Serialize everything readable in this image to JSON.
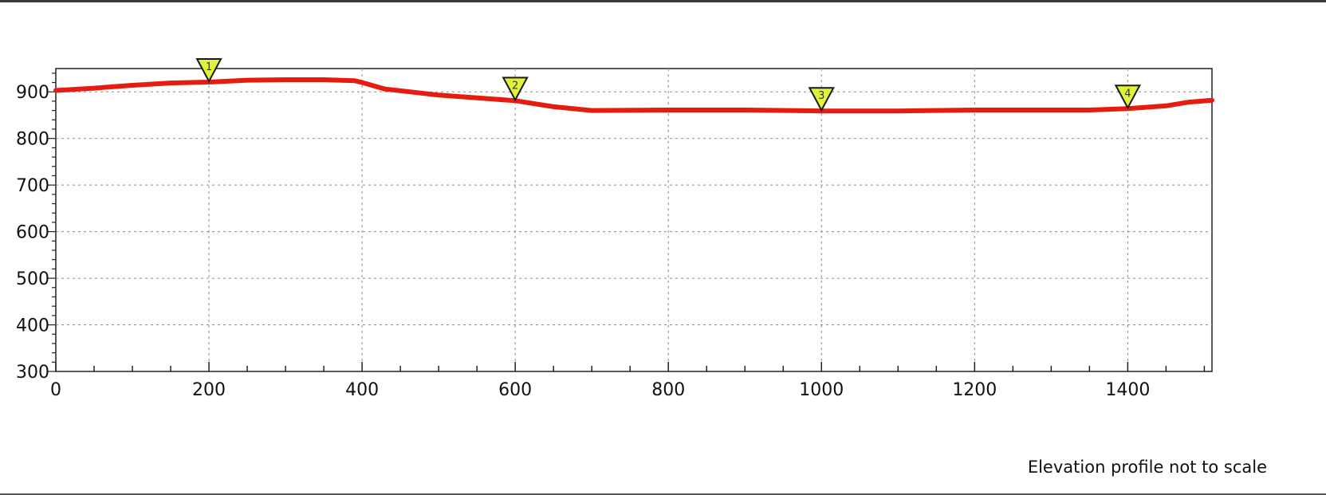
{
  "chart_data": {
    "type": "line",
    "title": "",
    "xlabel": "",
    "ylabel": "",
    "xlim": [
      0,
      1510
    ],
    "ylim": [
      300,
      950
    ],
    "x_ticks": [
      0,
      200,
      400,
      600,
      800,
      1000,
      1200,
      1400
    ],
    "x_tick_labels": [
      "0",
      "200",
      "400",
      "600",
      "800",
      "1000",
      "1200",
      "1400"
    ],
    "y_ticks": [
      300,
      400,
      500,
      600,
      700,
      800,
      900
    ],
    "y_tick_labels": [
      "300",
      "400",
      "500",
      "600",
      "700",
      "800",
      "900"
    ],
    "grid": true,
    "grid_style": "dotted",
    "line_color": "#e61b12",
    "marker_color": "#e0f23a",
    "series": [
      {
        "x": [
          0,
          50,
          100,
          150,
          200,
          250,
          300,
          350,
          390,
          400,
          430,
          500,
          600,
          650,
          700,
          800,
          900,
          1000,
          1100,
          1200,
          1300,
          1350,
          1400,
          1450,
          1480,
          1510
        ],
        "y": [
          903,
          908,
          914,
          919,
          921,
          925,
          926,
          926,
          924,
          920,
          906,
          893,
          881,
          868,
          860,
          861,
          861,
          859,
          859,
          861,
          861,
          861,
          864,
          870,
          878,
          882
        ]
      }
    ],
    "markers": [
      {
        "label": "1",
        "x": 200
      },
      {
        "label": "2",
        "x": 600
      },
      {
        "label": "3",
        "x": 1000
      },
      {
        "label": "4",
        "x": 1400
      }
    ]
  },
  "note": "Elevation profile not to scale"
}
